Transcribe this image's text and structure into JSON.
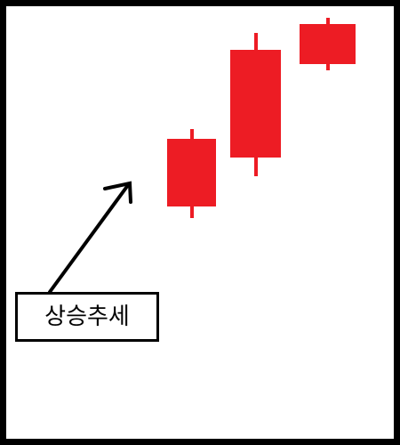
{
  "label": {
    "text": "상승추세"
  },
  "colors": {
    "frame": "#000000",
    "background": "#ffffff",
    "candle": "#ed1c24",
    "arrow": "#000000"
  },
  "candles": [
    {
      "name": "candle-1"
    },
    {
      "name": "candle-2"
    },
    {
      "name": "candle-3"
    }
  ],
  "arrow": {
    "icon": "arrow-up-right-icon"
  }
}
